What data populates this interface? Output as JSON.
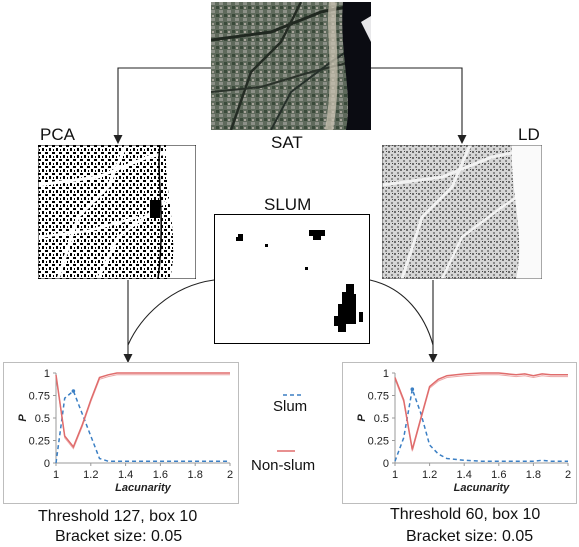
{
  "labels": {
    "sat": "SAT",
    "pca": "PCA",
    "ld": "LD",
    "slum": "SLUM"
  },
  "legend": {
    "slum": "Slum",
    "nonslum": "Non-slum"
  },
  "captions": {
    "left_line1": "Threshold 127, box 10",
    "left_line2": "Bracket size: 0.05",
    "right_line1": "Threshold 60, box 10",
    "right_line2": "Bracket size: 0.05"
  },
  "colors": {
    "slum": "#3b7fc4",
    "nonslum": "#e06c6c",
    "axis": "#999999",
    "frame": "#bdbdbd"
  },
  "chart_data": [
    {
      "type": "line",
      "xlabel": "Lacunarity",
      "ylabel": "P",
      "xlim": [
        1,
        2
      ],
      "ylim": [
        0,
        1
      ],
      "xticks": [
        "1",
        "1.2",
        "1.4",
        "1.6",
        "1.8",
        "2"
      ],
      "yticks": [
        "0",
        "0.25",
        "0.5",
        "0.75",
        "1"
      ],
      "grid": false,
      "series": [
        {
          "name": "Slum",
          "style": "dashed",
          "x": [
            1.0,
            1.05,
            1.1,
            1.15,
            1.2,
            1.25,
            1.3,
            1.35,
            1.4,
            1.5,
            1.6,
            1.7,
            1.8,
            1.9,
            2.0
          ],
          "y": [
            0.0,
            0.72,
            0.8,
            0.55,
            0.3,
            0.05,
            0.02,
            0.02,
            0.02,
            0.02,
            0.02,
            0.02,
            0.02,
            0.02,
            0.02
          ]
        },
        {
          "name": "Non-slum",
          "style": "solid",
          "x": [
            1.0,
            1.05,
            1.1,
            1.15,
            1.2,
            1.25,
            1.3,
            1.35,
            1.4,
            1.5,
            1.6,
            1.7,
            1.8,
            1.9,
            2.0
          ],
          "y": [
            0.98,
            0.3,
            0.18,
            0.42,
            0.7,
            0.95,
            0.98,
            1.0,
            1.0,
            1.0,
            1.0,
            1.0,
            1.0,
            1.0,
            1.0
          ]
        }
      ]
    },
    {
      "type": "line",
      "xlabel": "Lacunarity",
      "ylabel": "P",
      "xlim": [
        1,
        2
      ],
      "ylim": [
        0,
        1
      ],
      "xticks": [
        "1",
        "1.2",
        "1.4",
        "1.6",
        "1.8",
        "2"
      ],
      "yticks": [
        "0",
        "0.25",
        "0.5",
        "0.75",
        "1"
      ],
      "grid": false,
      "series": [
        {
          "name": "Slum",
          "style": "dashed",
          "x": [
            1.0,
            1.05,
            1.1,
            1.15,
            1.2,
            1.25,
            1.3,
            1.4,
            1.5,
            1.6,
            1.7,
            1.8,
            1.85,
            1.9,
            2.0
          ],
          "y": [
            0.02,
            0.28,
            0.82,
            0.55,
            0.2,
            0.1,
            0.05,
            0.03,
            0.02,
            0.02,
            0.02,
            0.02,
            0.03,
            0.02,
            0.02
          ]
        },
        {
          "name": "Non-slum",
          "style": "solid",
          "x": [
            1.0,
            1.05,
            1.1,
            1.15,
            1.2,
            1.25,
            1.3,
            1.4,
            1.5,
            1.6,
            1.7,
            1.75,
            1.8,
            1.85,
            1.9,
            2.0
          ],
          "y": [
            0.95,
            0.7,
            0.15,
            0.5,
            0.85,
            0.93,
            0.97,
            0.99,
            1.0,
            1.0,
            0.98,
            0.99,
            0.97,
            0.99,
            0.98,
            0.98
          ]
        }
      ]
    }
  ]
}
